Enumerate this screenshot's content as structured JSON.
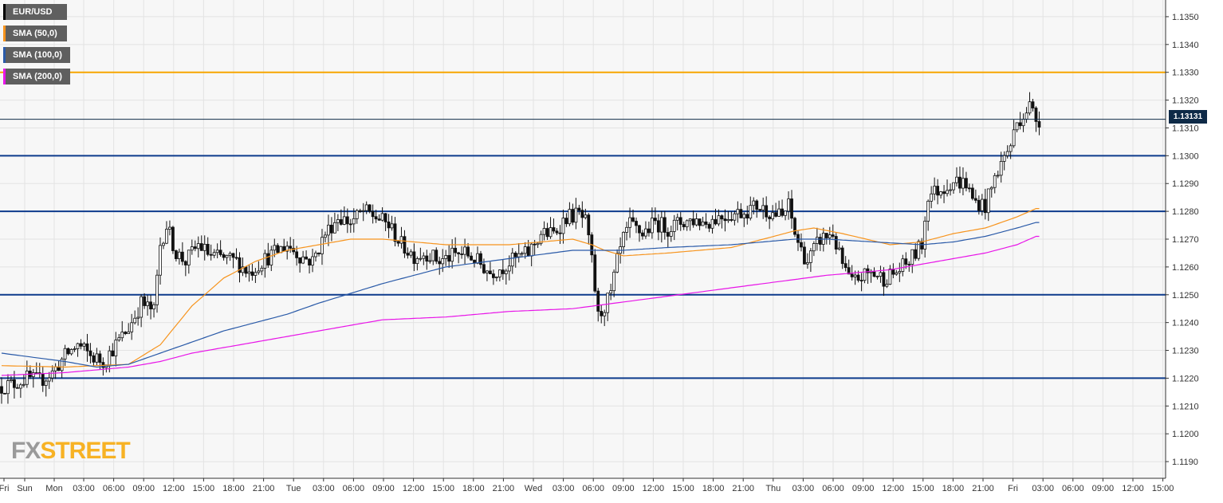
{
  "chart_data": {
    "type": "candlestick",
    "symbol": "EUR/USD",
    "ylim": [
      1.1184,
      1.1356
    ],
    "yticks": [
      "1.1190",
      "1.1200",
      "1.1210",
      "1.1220",
      "1.1230",
      "1.1240",
      "1.1250",
      "1.1260",
      "1.1270",
      "1.1280",
      "1.1290",
      "1.1300",
      "1.1310",
      "1.1320",
      "1.1330",
      "1.1340",
      "1.1350"
    ],
    "xticks": [
      "Fri",
      "Sun",
      "Mon",
      "03:00",
      "06:00",
      "09:00",
      "12:00",
      "15:00",
      "18:00",
      "21:00",
      "Tue",
      "03:00",
      "06:00",
      "09:00",
      "12:00",
      "15:00",
      "18:00",
      "21:00",
      "Wed",
      "03:00",
      "06:00",
      "09:00",
      "12:00",
      "15:00",
      "18:00",
      "21:00",
      "Thu",
      "03:00",
      "06:00",
      "09:00",
      "12:00",
      "15:00",
      "18:00",
      "21:00",
      "Fri",
      "03:00",
      "06:00",
      "09:00",
      "12:00",
      "15:00"
    ],
    "grid": true,
    "last_price": "1.13131",
    "horizontal_levels": [
      {
        "value": 1.133,
        "color": "#f7a600"
      },
      {
        "value": 1.13,
        "color": "#0d3b8c"
      },
      {
        "value": 1.128,
        "color": "#0d3b8c"
      },
      {
        "value": 1.125,
        "color": "#0d3b8c"
      },
      {
        "value": 1.122,
        "color": "#0d3b8c"
      }
    ],
    "price_anchors": [
      [
        0,
        1.1217
      ],
      [
        4,
        1.1218
      ],
      [
        8,
        1.122
      ],
      [
        12,
        1.1219
      ],
      [
        16,
        1.1222
      ],
      [
        20,
        1.1228
      ],
      [
        24,
        1.1232
      ],
      [
        28,
        1.1228
      ],
      [
        32,
        1.1226
      ],
      [
        36,
        1.1232
      ],
      [
        40,
        1.1238
      ],
      [
        44,
        1.1247
      ],
      [
        48,
        1.1244
      ],
      [
        50,
        1.1268
      ],
      [
        52,
        1.1275
      ],
      [
        55,
        1.1265
      ],
      [
        58,
        1.1262
      ],
      [
        62,
        1.1268
      ],
      [
        66,
        1.1264
      ],
      [
        70,
        1.1263
      ],
      [
        74,
        1.1262
      ],
      [
        78,
        1.1258
      ],
      [
        82,
        1.1262
      ],
      [
        86,
        1.1265
      ],
      [
        90,
        1.1268
      ],
      [
        94,
        1.1264
      ],
      [
        98,
        1.1262
      ],
      [
        102,
        1.1272
      ],
      [
        106,
        1.1278
      ],
      [
        110,
        1.1276
      ],
      [
        114,
        1.128
      ],
      [
        118,
        1.1278
      ],
      [
        122,
        1.1275
      ],
      [
        126,
        1.1268
      ],
      [
        130,
        1.1264
      ],
      [
        134,
        1.1265
      ],
      [
        138,
        1.1262
      ],
      [
        142,
        1.1264
      ],
      [
        146,
        1.1265
      ],
      [
        150,
        1.1262
      ],
      [
        154,
        1.1258
      ],
      [
        158,
        1.126
      ],
      [
        162,
        1.1263
      ],
      [
        166,
        1.1265
      ],
      [
        170,
        1.1272
      ],
      [
        174,
        1.1272
      ],
      [
        178,
        1.1278
      ],
      [
        182,
        1.1279
      ],
      [
        184,
        1.1276
      ],
      [
        186,
        1.1262
      ],
      [
        188,
        1.1242
      ],
      [
        190,
        1.1246
      ],
      [
        192,
        1.125
      ],
      [
        194,
        1.1262
      ],
      [
        196,
        1.127
      ],
      [
        198,
        1.1275
      ],
      [
        202,
        1.1272
      ],
      [
        206,
        1.1276
      ],
      [
        210,
        1.1274
      ],
      [
        214,
        1.1276
      ],
      [
        218,
        1.1277
      ],
      [
        222,
        1.1276
      ],
      [
        226,
        1.1278
      ],
      [
        230,
        1.1279
      ],
      [
        234,
        1.128
      ],
      [
        238,
        1.1282
      ],
      [
        242,
        1.128
      ],
      [
        246,
        1.1278
      ],
      [
        248,
        1.1282
      ],
      [
        250,
        1.1272
      ],
      [
        252,
        1.1266
      ],
      [
        254,
        1.1262
      ],
      [
        258,
        1.127
      ],
      [
        262,
        1.1272
      ],
      [
        264,
        1.1264
      ],
      [
        266,
        1.1258
      ],
      [
        268,
        1.1254
      ],
      [
        270,
        1.1256
      ],
      [
        274,
        1.1258
      ],
      [
        278,
        1.1256
      ],
      [
        282,
        1.1258
      ],
      [
        286,
        1.1262
      ],
      [
        290,
        1.1268
      ],
      [
        292,
        1.1286
      ],
      [
        296,
        1.1288
      ],
      [
        300,
        1.1291
      ],
      [
        304,
        1.129
      ],
      [
        306,
        1.1284
      ],
      [
        310,
        1.1282
      ],
      [
        314,
        1.1295
      ],
      [
        318,
        1.1304
      ],
      [
        320,
        1.1312
      ],
      [
        324,
        1.1318
      ],
      [
        326,
        1.1313
      ]
    ],
    "sma": [
      {
        "label": "SMA (50,0)",
        "color": "#f7941d",
        "points": [
          [
            0,
            1.12245
          ],
          [
            20,
            1.1224
          ],
          [
            40,
            1.1225
          ],
          [
            50,
            1.1232
          ],
          [
            60,
            1.1246
          ],
          [
            70,
            1.1256
          ],
          [
            80,
            1.1262
          ],
          [
            90,
            1.1266
          ],
          [
            100,
            1.1268
          ],
          [
            110,
            1.127
          ],
          [
            120,
            1.127
          ],
          [
            130,
            1.1269
          ],
          [
            140,
            1.1268
          ],
          [
            150,
            1.1268
          ],
          [
            160,
            1.1268
          ],
          [
            170,
            1.1269
          ],
          [
            180,
            1.127
          ],
          [
            186,
            1.1268
          ],
          [
            190,
            1.1266
          ],
          [
            196,
            1.1264
          ],
          [
            210,
            1.1265
          ],
          [
            220,
            1.1266
          ],
          [
            230,
            1.1267
          ],
          [
            240,
            1.127
          ],
          [
            250,
            1.1273
          ],
          [
            256,
            1.1274
          ],
          [
            265,
            1.1272
          ],
          [
            280,
            1.1268
          ],
          [
            290,
            1.1269
          ],
          [
            300,
            1.1272
          ],
          [
            310,
            1.1274
          ],
          [
            320,
            1.1278
          ],
          [
            326,
            1.1281
          ]
        ]
      },
      {
        "label": "SMA (100,0)",
        "color": "#2a5aa8",
        "points": [
          [
            0,
            1.1229
          ],
          [
            20,
            1.1226
          ],
          [
            30,
            1.1224
          ],
          [
            40,
            1.1225
          ],
          [
            50,
            1.1229
          ],
          [
            60,
            1.1233
          ],
          [
            70,
            1.1237
          ],
          [
            80,
            1.124
          ],
          [
            90,
            1.1243
          ],
          [
            100,
            1.1247
          ],
          [
            120,
            1.1254
          ],
          [
            140,
            1.126
          ],
          [
            160,
            1.1263
          ],
          [
            180,
            1.1266
          ],
          [
            186,
            1.1266
          ],
          [
            196,
            1.1266
          ],
          [
            210,
            1.1267
          ],
          [
            230,
            1.1268
          ],
          [
            250,
            1.127
          ],
          [
            260,
            1.127
          ],
          [
            275,
            1.1269
          ],
          [
            290,
            1.1268
          ],
          [
            300,
            1.1269
          ],
          [
            310,
            1.1271
          ],
          [
            320,
            1.1274
          ],
          [
            326,
            1.1276
          ]
        ]
      },
      {
        "label": "SMA (200,0)",
        "color": "#e815e8",
        "points": [
          [
            0,
            1.1221
          ],
          [
            20,
            1.1222
          ],
          [
            40,
            1.1224
          ],
          [
            50,
            1.1226
          ],
          [
            60,
            1.1229
          ],
          [
            70,
            1.1231
          ],
          [
            80,
            1.1233
          ],
          [
            90,
            1.1235
          ],
          [
            100,
            1.1237
          ],
          [
            110,
            1.1239
          ],
          [
            120,
            1.1241
          ],
          [
            140,
            1.1242
          ],
          [
            160,
            1.1244
          ],
          [
            180,
            1.1245
          ],
          [
            200,
            1.1248
          ],
          [
            220,
            1.1251
          ],
          [
            240,
            1.1254
          ],
          [
            260,
            1.1257
          ],
          [
            280,
            1.1259
          ],
          [
            290,
            1.1261
          ],
          [
            300,
            1.1263
          ],
          [
            310,
            1.1265
          ],
          [
            320,
            1.1268
          ],
          [
            326,
            1.1271
          ]
        ]
      }
    ]
  },
  "legend": [
    {
      "label": "EUR/USD",
      "color": "#000000"
    },
    {
      "label": "SMA (50,0)",
      "color": "#f7941d"
    },
    {
      "label": "SMA (100,0)",
      "color": "#2a5aa8"
    },
    {
      "label": "SMA (200,0)",
      "color": "#e815e8"
    }
  ],
  "watermark": {
    "fx": "FX",
    "street": "STREET"
  }
}
